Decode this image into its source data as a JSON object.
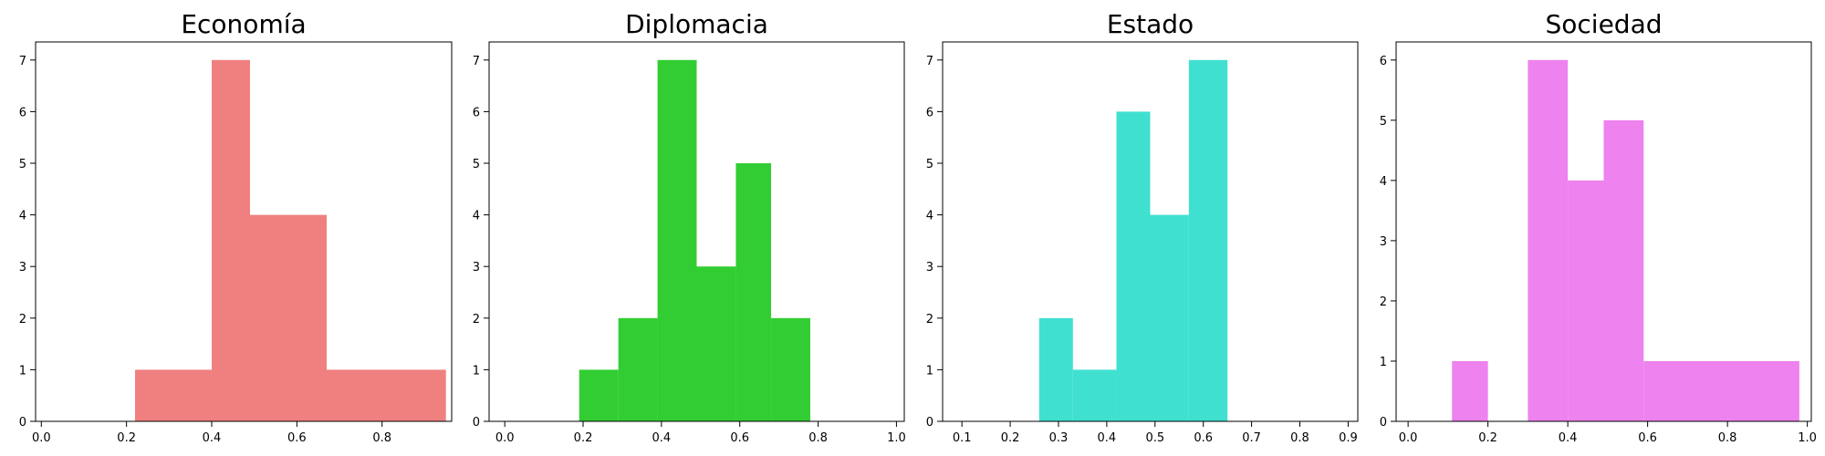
{
  "chart_data": [
    {
      "type": "bar",
      "title": "Economía",
      "color": "#F08080",
      "xlim": [
        -0.0135,
        0.9635
      ],
      "ylim": [
        0,
        7.35
      ],
      "xticks": [
        0.0,
        0.2,
        0.4,
        0.6,
        0.8
      ],
      "xtick_labels": [
        "0.0",
        "0.2",
        "0.4",
        "0.6",
        "0.8"
      ],
      "yticks": [
        0,
        1,
        2,
        3,
        4,
        5,
        6,
        7
      ],
      "ytick_labels": [
        "0",
        "1",
        "2",
        "3",
        "4",
        "5",
        "6",
        "7"
      ],
      "bins": [
        {
          "x0": 0.22,
          "x1": 0.4,
          "count": 1
        },
        {
          "x0": 0.4,
          "x1": 0.49,
          "count": 7
        },
        {
          "x0": 0.49,
          "x1": 0.67,
          "count": 4
        },
        {
          "x0": 0.67,
          "x1": 0.95,
          "count": 1
        }
      ]
    },
    {
      "type": "bar",
      "title": "Diplomacia",
      "color": "#32CD32",
      "xlim": [
        -0.04,
        1.02
      ],
      "ylim": [
        0,
        7.35
      ],
      "xticks": [
        0.0,
        0.2,
        0.4,
        0.6,
        0.8,
        1.0
      ],
      "xtick_labels": [
        "0.0",
        "0.2",
        "0.4",
        "0.6",
        "0.8",
        "1.0"
      ],
      "yticks": [
        0,
        1,
        2,
        3,
        4,
        5,
        6,
        7
      ],
      "ytick_labels": [
        "0",
        "1",
        "2",
        "3",
        "4",
        "5",
        "6",
        "7"
      ],
      "bins": [
        {
          "x0": 0.19,
          "x1": 0.29,
          "count": 1
        },
        {
          "x0": 0.29,
          "x1": 0.39,
          "count": 2
        },
        {
          "x0": 0.39,
          "x1": 0.49,
          "count": 7
        },
        {
          "x0": 0.49,
          "x1": 0.59,
          "count": 3
        },
        {
          "x0": 0.59,
          "x1": 0.68,
          "count": 5
        },
        {
          "x0": 0.68,
          "x1": 0.78,
          "count": 2
        }
      ]
    },
    {
      "type": "bar",
      "title": "Estado",
      "color": "#40E0D0",
      "xlim": [
        0.06,
        0.92
      ],
      "ylim": [
        0,
        7.35
      ],
      "xticks": [
        0.1,
        0.2,
        0.3,
        0.4,
        0.5,
        0.6,
        0.7,
        0.8,
        0.9
      ],
      "xtick_labels": [
        "0.1",
        "0.2",
        "0.3",
        "0.4",
        "0.5",
        "0.6",
        "0.7",
        "0.8",
        "0.9"
      ],
      "yticks": [
        0,
        1,
        2,
        3,
        4,
        5,
        6,
        7
      ],
      "ytick_labels": [
        "0",
        "1",
        "2",
        "3",
        "4",
        "5",
        "6",
        "7"
      ],
      "bins": [
        {
          "x0": 0.26,
          "x1": 0.33,
          "count": 2
        },
        {
          "x0": 0.33,
          "x1": 0.42,
          "count": 1
        },
        {
          "x0": 0.42,
          "x1": 0.49,
          "count": 6
        },
        {
          "x0": 0.49,
          "x1": 0.57,
          "count": 4
        },
        {
          "x0": 0.57,
          "x1": 0.65,
          "count": 7
        }
      ]
    },
    {
      "type": "bar",
      "title": "Sociedad",
      "color": "#EE82EE",
      "xlim": [
        -0.03,
        1.01
      ],
      "ylim": [
        0,
        6.3
      ],
      "xticks": [
        0.0,
        0.2,
        0.4,
        0.6,
        0.8,
        1.0
      ],
      "xtick_labels": [
        "0.0",
        "0.2",
        "0.4",
        "0.6",
        "0.8",
        "1.0"
      ],
      "yticks": [
        0,
        1,
        2,
        3,
        4,
        5,
        6
      ],
      "ytick_labels": [
        "0",
        "1",
        "2",
        "3",
        "4",
        "5",
        "6"
      ],
      "bins": [
        {
          "x0": 0.11,
          "x1": 0.2,
          "count": 1
        },
        {
          "x0": 0.2,
          "x1": 0.3,
          "count": 0
        },
        {
          "x0": 0.3,
          "x1": 0.4,
          "count": 6
        },
        {
          "x0": 0.4,
          "x1": 0.49,
          "count": 4
        },
        {
          "x0": 0.49,
          "x1": 0.59,
          "count": 5
        },
        {
          "x0": 0.59,
          "x1": 0.98,
          "count": 1
        }
      ]
    }
  ]
}
